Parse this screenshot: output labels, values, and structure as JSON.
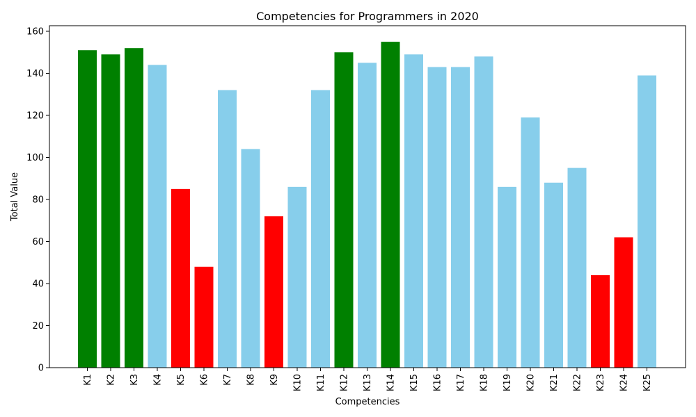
{
  "chart_data": {
    "type": "bar",
    "title": "Competencies for Programmers in 2020",
    "xlabel": "Competencies",
    "ylabel": "Total Value",
    "ylim": [
      0,
      160
    ],
    "yticks": [
      "0",
      "20",
      "40",
      "60",
      "80",
      "100",
      "120",
      "140",
      "160"
    ],
    "grid": false,
    "legend": "none",
    "colors": {
      "high": "#008000",
      "mid": "#87ceeb",
      "low": "#ff0000"
    },
    "categories": [
      "K1",
      "K2",
      "K3",
      "K4",
      "K5",
      "K6",
      "K7",
      "K8",
      "K9",
      "K10",
      "K11",
      "K12",
      "K13",
      "K14",
      "K15",
      "K16",
      "K17",
      "K18",
      "K19",
      "K20",
      "K21",
      "K22",
      "K23",
      "K24",
      "K25"
    ],
    "values": [
      151,
      149,
      152,
      144,
      85,
      48,
      132,
      104,
      72,
      86,
      132,
      150,
      145,
      155,
      149,
      143,
      143,
      148,
      86,
      119,
      88,
      95,
      44,
      62,
      139
    ],
    "bar_colors": [
      "high",
      "high",
      "high",
      "mid",
      "low",
      "low",
      "mid",
      "mid",
      "low",
      "mid",
      "mid",
      "high",
      "mid",
      "high",
      "mid",
      "mid",
      "mid",
      "mid",
      "mid",
      "mid",
      "mid",
      "mid",
      "low",
      "low",
      "mid"
    ]
  }
}
